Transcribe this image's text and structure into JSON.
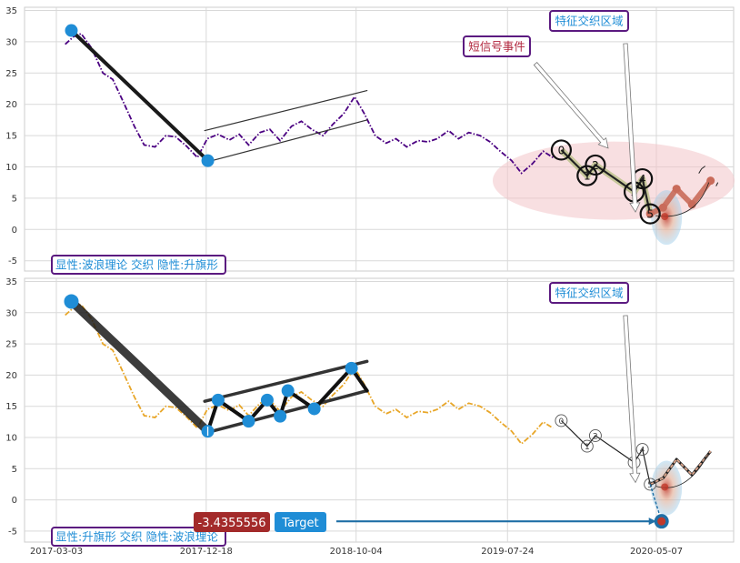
{
  "chart_data": [
    {
      "type": "line",
      "panel": "top",
      "ylim": [
        -6,
        35
      ],
      "y_ticks": [
        35,
        30,
        25,
        20,
        15,
        10,
        5,
        0,
        -5
      ],
      "grid": true,
      "series": [
        {
          "color": "#4b0082",
          "style": "dash-dot",
          "x": [
            "2017-03-20",
            "2017-04-05",
            "2017-04-20",
            "2017-05-10",
            "2017-06-01",
            "2017-06-20",
            "2017-07-10",
            "2017-08-01",
            "2017-08-20",
            "2017-09-10",
            "2017-10-01",
            "2017-10-20",
            "2017-11-10",
            "2017-12-01",
            "2017-12-20",
            "2018-01-10",
            "2018-02-01",
            "2018-02-20",
            "2018-03-10",
            "2018-04-01",
            "2018-04-20",
            "2018-05-10",
            "2018-06-01",
            "2018-06-20",
            "2018-07-10",
            "2018-08-01",
            "2018-08-20",
            "2018-09-10",
            "2018-10-01",
            "2018-10-20",
            "2018-11-10",
            "2018-12-01",
            "2018-12-20",
            "2019-01-10",
            "2019-02-01",
            "2019-02-20",
            "2019-03-10",
            "2019-04-01",
            "2019-04-20",
            "2019-05-10",
            "2019-06-01",
            "2019-06-20",
            "2019-07-10",
            "2019-08-01",
            "2019-08-20",
            "2019-09-10",
            "2019-10-01",
            "2019-10-20"
          ],
          "values": [
            29.6,
            30.8,
            31.3,
            29.0,
            25.0,
            24.0,
            20.5,
            16.5,
            13.5,
            13.2,
            15.0,
            14.8,
            13.3,
            11.5,
            14.5,
            15.2,
            14.3,
            15.2,
            13.5,
            15.5,
            16.0,
            14.2,
            16.5,
            17.3,
            16.0,
            15.0,
            16.8,
            18.5,
            21.2,
            18.5,
            15.0,
            13.8,
            14.5,
            13.2,
            14.2,
            14.0,
            14.5,
            15.8,
            14.5,
            15.5,
            15.0,
            14.0,
            12.5,
            11.0,
            9.0,
            10.5,
            12.5,
            11.5
          ]
        }
      ],
      "pattern_lines": [
        {
          "kind": "wave-leg",
          "color": "#1a1a1a",
          "points": [
            {
              "x": "2017-04-01",
              "y": 31.8
            },
            {
              "x": "2017-12-21",
              "y": 11.0
            }
          ]
        },
        {
          "kind": "flag-upper",
          "color": "#333333",
          "points": [
            {
              "x": "2017-12-15",
              "y": 15.8
            },
            {
              "x": "2018-10-25",
              "y": 22.2
            }
          ]
        },
        {
          "kind": "flag-lower",
          "color": "#333333",
          "points": [
            {
              "x": "2017-12-15",
              "y": 10.7
            },
            {
              "x": "2018-10-25",
              "y": 17.5
            }
          ]
        }
      ],
      "pivot_markers": [
        {
          "x": "2017-04-01",
          "y": 31.8,
          "color": "#1f8dd6"
        },
        {
          "x": "2017-12-21",
          "y": 11.0,
          "color": "#1f8dd6"
        }
      ],
      "wave_points": [
        {
          "label": "0",
          "x": "2019-11-05",
          "y": 12.7
        },
        {
          "label": "1",
          "x": "2019-12-25",
          "y": 8.6
        },
        {
          "label": "2",
          "x": "2020-01-10",
          "y": 10.3
        },
        {
          "label": "3",
          "x": "2020-03-25",
          "y": 6.0
        },
        {
          "label": "4",
          "x": "2020-04-10",
          "y": 8.1
        },
        {
          "label": "5",
          "x": "2020-04-25",
          "y": 2.5
        }
      ],
      "projection_points": [
        {
          "x": "2020-04-25",
          "y": 2.5
        },
        {
          "x": "2020-05-20",
          "y": 3.5
        },
        {
          "x": "2020-06-15",
          "y": 6.5
        },
        {
          "x": "2020-07-15",
          "y": 4.0
        },
        {
          "x": "2020-08-20",
          "y": 7.8
        }
      ],
      "annotations": [
        {
          "text": "特征交织区域",
          "color": "#1f8dd6"
        },
        {
          "text": "短信号事件",
          "color": "#b0233a"
        }
      ],
      "caption": "显性:波浪理论 交织 隐性:升旗形"
    },
    {
      "type": "line",
      "panel": "bottom",
      "ylim": [
        -6,
        35
      ],
      "y_ticks": [
        35,
        30,
        25,
        20,
        15,
        10,
        5,
        0,
        -5
      ],
      "x_tick_labels": [
        "2017-03-03",
        "2017-12-18",
        "2018-10-04",
        "2019-07-24",
        "2020-05-07"
      ],
      "grid": true,
      "series": [
        {
          "color": "#e8a628",
          "style": "dash-dot",
          "x": [
            "2017-03-20",
            "2017-04-05",
            "2017-04-20",
            "2017-05-10",
            "2017-06-01",
            "2017-06-20",
            "2017-07-10",
            "2017-08-01",
            "2017-08-20",
            "2017-09-10",
            "2017-10-01",
            "2017-10-20",
            "2017-11-10",
            "2017-12-01",
            "2017-12-20",
            "2018-01-10",
            "2018-02-01",
            "2018-02-20",
            "2018-03-10",
            "2018-04-01",
            "2018-04-20",
            "2018-05-10",
            "2018-06-01",
            "2018-06-20",
            "2018-07-10",
            "2018-08-01",
            "2018-08-20",
            "2018-09-10",
            "2018-10-01",
            "2018-10-20",
            "2018-11-10",
            "2018-12-01",
            "2018-12-20",
            "2019-01-10",
            "2019-02-01",
            "2019-02-20",
            "2019-03-10",
            "2019-04-01",
            "2019-04-20",
            "2019-05-10",
            "2019-06-01",
            "2019-06-20",
            "2019-07-10",
            "2019-08-01",
            "2019-08-20",
            "2019-09-10",
            "2019-10-01",
            "2019-10-20"
          ],
          "values": [
            29.6,
            30.8,
            31.3,
            29.0,
            25.0,
            24.0,
            20.5,
            16.5,
            13.5,
            13.2,
            15.0,
            14.8,
            13.3,
            11.5,
            14.5,
            15.2,
            14.3,
            15.2,
            13.5,
            15.5,
            16.0,
            14.2,
            16.5,
            17.3,
            16.0,
            15.0,
            16.8,
            18.5,
            21.2,
            18.5,
            15.0,
            13.8,
            14.5,
            13.2,
            14.2,
            14.0,
            14.5,
            15.8,
            14.5,
            15.5,
            15.0,
            14.0,
            12.5,
            11.0,
            9.0,
            10.5,
            12.5,
            11.5
          ]
        }
      ],
      "pattern_lines": [
        {
          "kind": "wave-leg",
          "color": "#1a1a1a",
          "points": [
            {
              "x": "2017-04-01",
              "y": 31.8
            },
            {
              "x": "2017-12-21",
              "y": 11.0
            }
          ]
        },
        {
          "kind": "flag-upper",
          "color": "#333333",
          "points": [
            {
              "x": "2017-12-15",
              "y": 15.8
            },
            {
              "x": "2018-10-25",
              "y": 22.2
            }
          ]
        },
        {
          "kind": "flag-lower",
          "color": "#333333",
          "points": [
            {
              "x": "2017-12-15",
              "y": 10.7
            },
            {
              "x": "2018-10-25",
              "y": 17.5
            }
          ]
        },
        {
          "kind": "flag-zigzag",
          "color": "#111111",
          "points": [
            {
              "x": "2017-12-21",
              "y": 11.0
            },
            {
              "x": "2018-01-10",
              "y": 16.0
            },
            {
              "x": "2018-03-10",
              "y": 12.6
            },
            {
              "x": "2018-04-15",
              "y": 16.0
            },
            {
              "x": "2018-05-10",
              "y": 13.4
            },
            {
              "x": "2018-05-25",
              "y": 17.5
            },
            {
              "x": "2018-07-15",
              "y": 14.6
            },
            {
              "x": "2018-09-25",
              "y": 21.1
            },
            {
              "x": "2018-10-25",
              "y": 17.5
            }
          ]
        }
      ],
      "pivot_markers": [
        {
          "x": "2017-04-01",
          "y": 31.8,
          "color": "#1f8dd6"
        },
        {
          "x": "2017-12-21",
          "y": 11.0,
          "color": "#1f8dd6"
        },
        {
          "x": "2018-01-10",
          "y": 16.0,
          "color": "#1f8dd6"
        },
        {
          "x": "2018-03-10",
          "y": 12.6,
          "color": "#1f8dd6"
        },
        {
          "x": "2018-04-15",
          "y": 16.0,
          "color": "#1f8dd6"
        },
        {
          "x": "2018-05-10",
          "y": 13.4,
          "color": "#1f8dd6"
        },
        {
          "x": "2018-05-25",
          "y": 17.5,
          "color": "#1f8dd6"
        },
        {
          "x": "2018-07-15",
          "y": 14.6,
          "color": "#1f8dd6"
        },
        {
          "x": "2018-09-25",
          "y": 21.1,
          "color": "#1f8dd6"
        }
      ],
      "wave_points": [
        {
          "label": "0",
          "x": "2019-11-05",
          "y": 12.7
        },
        {
          "label": "1",
          "x": "2019-12-25",
          "y": 8.6
        },
        {
          "label": "2",
          "x": "2020-01-10",
          "y": 10.3
        },
        {
          "label": "3",
          "x": "2020-03-25",
          "y": 6.0
        },
        {
          "label": "4",
          "x": "2020-04-10",
          "y": 8.1
        },
        {
          "label": "5",
          "x": "2020-04-25",
          "y": 2.5
        }
      ],
      "projection_points": [
        {
          "x": "2020-04-25",
          "y": 2.5
        },
        {
          "x": "2020-05-20",
          "y": 3.5
        },
        {
          "x": "2020-06-15",
          "y": 6.5
        },
        {
          "x": "2020-07-15",
          "y": 4.0
        },
        {
          "x": "2020-08-20",
          "y": 7.8
        }
      ],
      "target": {
        "x": "2020-05-17",
        "y": -3.4355556,
        "value_label": "-3.4355556",
        "label": "Target"
      },
      "annotations": [
        {
          "text": "特征交织区域",
          "color": "#1f8dd6"
        }
      ],
      "caption": "显性:升旗形 交织 隐性:波浪理论"
    }
  ]
}
